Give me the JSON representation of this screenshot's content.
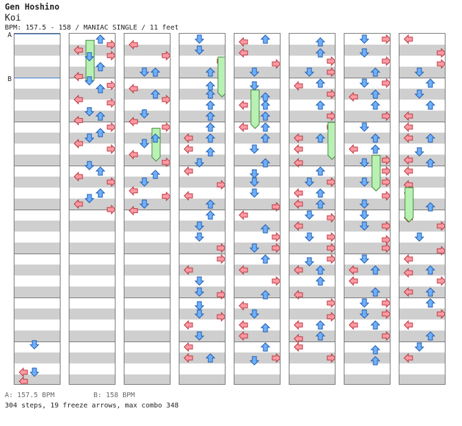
{
  "song": {
    "artist": "Gen Hoshino",
    "title": "Koi"
  },
  "chart_info": "BPM: 157.5 - 158 / MANIAC SINGLE / 11 feet",
  "bpm_markers": [
    {
      "label": "A",
      "bpm_text": "A: 157.5 BPM"
    },
    {
      "label": "B",
      "bpm_text": "B: 158 BPM"
    }
  ],
  "summary": "304 steps, 19 freeze arrows, max combo 348",
  "colors": {
    "left_right": "#ff9aa4",
    "up_down": "#6fb0ff",
    "freeze": "#b9f0b4",
    "shock": "#f6b6f2",
    "bpm_line": "#3a7acc",
    "stripe": "#cfcfcf"
  },
  "icons": [
    "arrow-left-icon",
    "arrow-down-icon",
    "arrow-up-icon",
    "arrow-right-icon",
    "freeze-arrow-icon"
  ],
  "chart_data": {
    "type": "table",
    "lanes": [
      "left",
      "down",
      "up",
      "right"
    ],
    "columns": [
      {
        "notes": [
          {
            "lane": 0,
            "beat": 30.3
          },
          {
            "lane": 1,
            "beat": 30.3
          },
          {
            "lane": 0,
            "beat": 31.3
          },
          {
            "lane": 1,
            "beat": 27.8
          }
        ]
      },
      {
        "notes": [
          {
            "lane": 2,
            "beat": 0
          },
          {
            "lane": 3,
            "beat": 0.5
          },
          {
            "lane": 0,
            "beat": 1
          },
          {
            "lane": 1,
            "beat": 1.6
          },
          {
            "lane": 3,
            "beat": 1.5
          },
          {
            "lane": 2,
            "beat": 2.5
          },
          {
            "lane": 0,
            "beat": 3.4
          },
          {
            "lane": 1,
            "beat": 3.8
          },
          {
            "lane": 3,
            "beat": 4.2
          },
          {
            "lane": 2,
            "beat": 4.5
          },
          {
            "lane": 0,
            "beat": 5.5
          },
          {
            "lane": 3,
            "beat": 5.8
          },
          {
            "lane": 1,
            "beat": 6.6
          },
          {
            "lane": 2,
            "beat": 7
          },
          {
            "lane": 0,
            "beat": 7.4
          },
          {
            "lane": 3,
            "beat": 8
          },
          {
            "lane": 2,
            "beat": 8.5
          },
          {
            "lane": 1,
            "beat": 9
          },
          {
            "lane": 0,
            "beat": 9.5
          },
          {
            "lane": 3,
            "beat": 10
          },
          {
            "lane": 1,
            "beat": 11.5
          },
          {
            "lane": 2,
            "beat": 12
          },
          {
            "lane": 0,
            "beat": 12.5
          },
          {
            "lane": 3,
            "beat": 13
          },
          {
            "lane": 2,
            "beat": 14
          },
          {
            "lane": 1,
            "beat": 14.5
          },
          {
            "lane": 0,
            "beat": 15
          },
          {
            "lane": 3,
            "beat": 15.5
          }
        ],
        "freezes": [
          {
            "lane": 1,
            "start": 0.3,
            "end": 2.3
          }
        ]
      },
      {
        "notes": [
          {
            "lane": 0,
            "beat": 0.5
          },
          {
            "lane": 3,
            "beat": 1.5
          },
          {
            "lane": 1,
            "beat": 3
          },
          {
            "lane": 2,
            "beat": 3
          },
          {
            "lane": 0,
            "beat": 4.5
          },
          {
            "lane": 2,
            "beat": 5
          },
          {
            "lane": 3,
            "beat": 5.5
          },
          {
            "lane": 1,
            "beat": 6.8
          },
          {
            "lane": 0,
            "beat": 7.5
          },
          {
            "lane": 3,
            "beat": 8
          },
          {
            "lane": 2,
            "beat": 9
          },
          {
            "lane": 1,
            "beat": 9.5
          },
          {
            "lane": 0,
            "beat": 10.5
          },
          {
            "lane": 3,
            "beat": 11.2
          },
          {
            "lane": 2,
            "beat": 12.3
          },
          {
            "lane": 1,
            "beat": 13
          },
          {
            "lane": 0,
            "beat": 13.8
          },
          {
            "lane": 3,
            "beat": 14.3
          },
          {
            "lane": 1,
            "beat": 15
          },
          {
            "lane": 0,
            "beat": 15.6
          }
        ],
        "freezes": [
          {
            "lane": 2,
            "start": 4.3,
            "end": 5.8
          }
        ]
      }
    ]
  }
}
